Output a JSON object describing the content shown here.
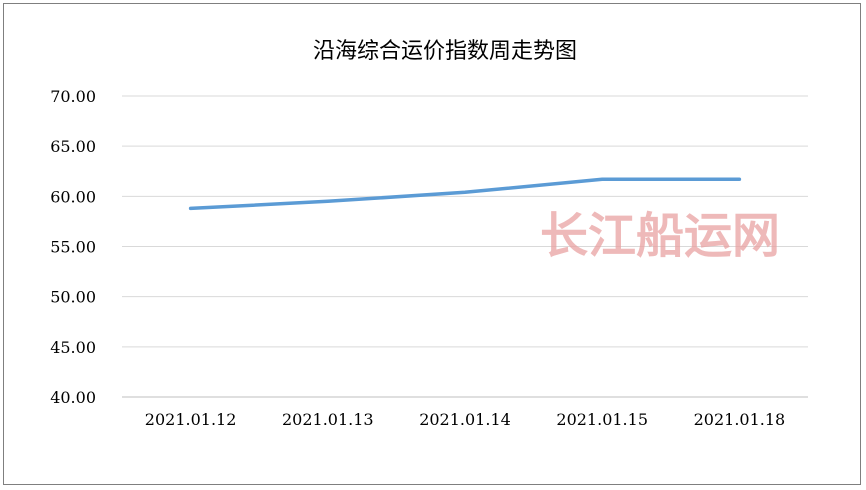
{
  "chart_data": {
    "type": "line",
    "title": "沿海综合运价指数周走势图",
    "categories": [
      "2021.01.12",
      "2021.01.13",
      "2021.01.14",
      "2021.01.15",
      "2021.01.18"
    ],
    "series": [
      {
        "values": [
          58.8,
          59.5,
          60.4,
          61.7,
          61.7
        ]
      }
    ],
    "ylim": [
      40,
      70
    ],
    "yticks": [
      "40.00",
      "45.00",
      "50.00",
      "55.00",
      "60.00",
      "65.00",
      "70.00"
    ],
    "grid": true,
    "legend": "none",
    "line_color": "#5b9bd5",
    "watermark": "长江船运网"
  }
}
